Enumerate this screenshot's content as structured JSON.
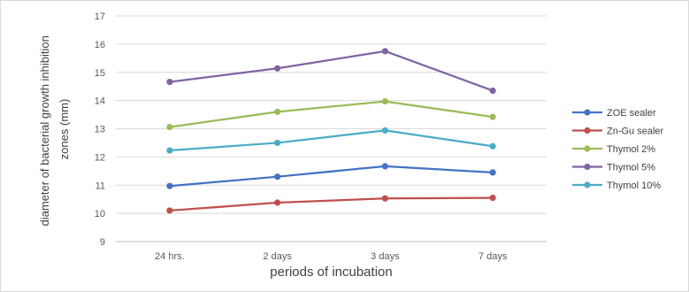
{
  "chart_data": {
    "type": "line",
    "title": "",
    "xlabel": "periods of incubation",
    "ylabel_lines": [
      "diameter of bacterial growth inhibition",
      "zones (mm)"
    ],
    "categories": [
      "24 hrs.",
      "2 days",
      "3 days",
      "7 days"
    ],
    "ylim": [
      9,
      17
    ],
    "yticks": [
      "9",
      "10",
      "11",
      "12",
      "13",
      "14",
      "15",
      "16",
      "17"
    ],
    "grid": true,
    "legend_position": "right",
    "series": [
      {
        "name": "ZOE sealer",
        "color": "#4472c4",
        "values": [
          10.97,
          11.3,
          11.67,
          11.45
        ]
      },
      {
        "name": "Zn-Gu sealer",
        "color": "#c0504d",
        "values": [
          10.1,
          10.38,
          10.53,
          10.55
        ]
      },
      {
        "name": "Thymol 2%",
        "color": "#9bbb59",
        "values": [
          13.06,
          13.6,
          13.97,
          13.42
        ]
      },
      {
        "name": "Thymol 5%",
        "color": "#8064a2",
        "values": [
          14.66,
          15.14,
          15.75,
          14.35
        ]
      },
      {
        "name": "Thymol 10%",
        "color": "#4bacc6",
        "values": [
          12.23,
          12.5,
          12.94,
          12.38
        ]
      }
    ]
  }
}
